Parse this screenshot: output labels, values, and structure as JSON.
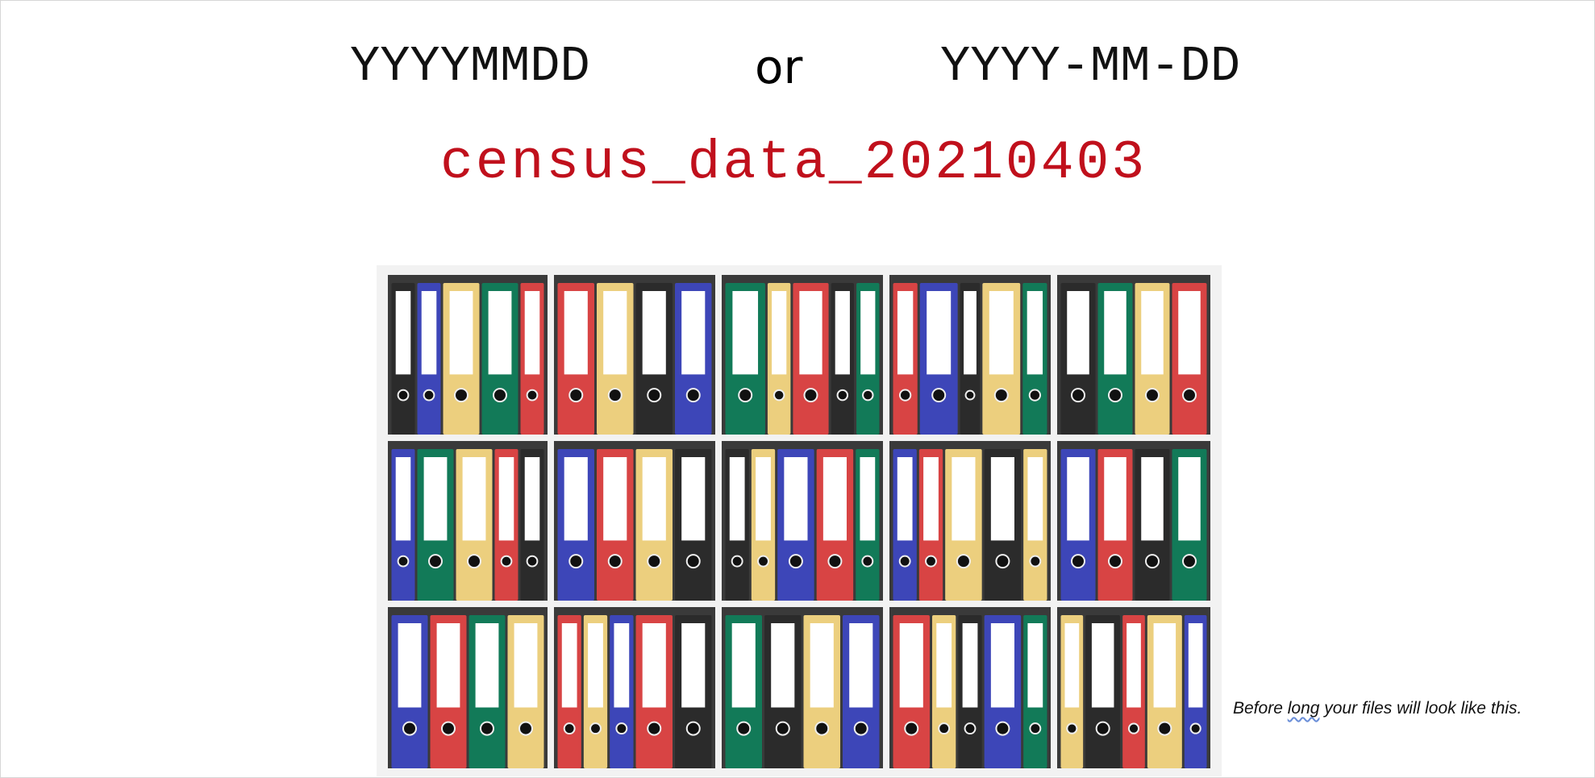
{
  "formats": {
    "compact": "YYYYMMDD",
    "connector": "or",
    "dashed": "YYYY-MM-DD"
  },
  "example_filename": "census_data_20210403",
  "caption": {
    "before": "Before ",
    "flagged_word": "long",
    "after": " your files will look like this."
  },
  "image": {
    "subject": "binder-bookshelf",
    "binder_colors": {
      "black": "#2b2b2b",
      "blue": "#3d46b8",
      "yellow": "#eccf7e",
      "green": "#127a58",
      "red": "#d84444"
    }
  }
}
